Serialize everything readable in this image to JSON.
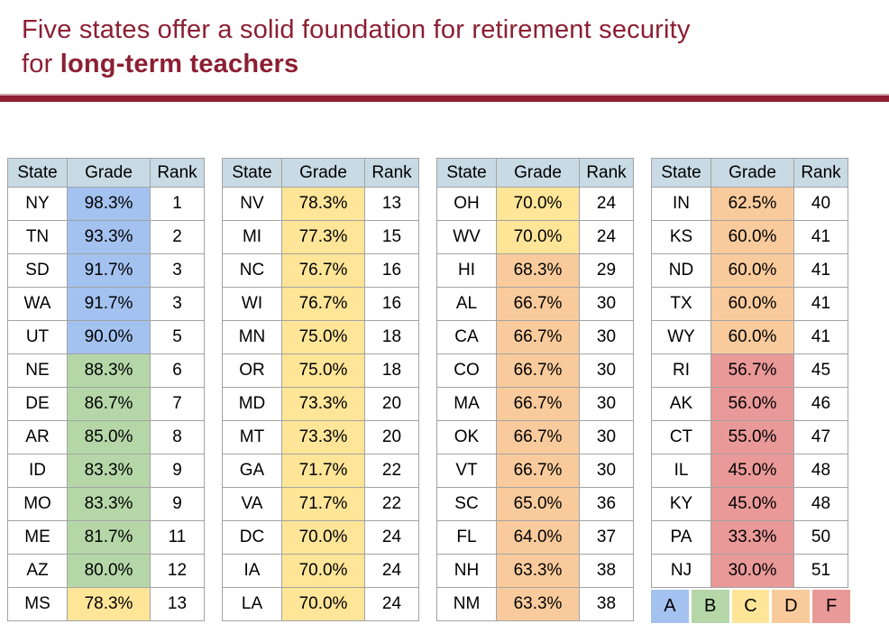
{
  "title": {
    "line1": "Five states offer a solid foundation for retirement security",
    "line2_prefix": "for ",
    "line2_bold": "long-term teachers"
  },
  "colors": {
    "accent": "#8c1f33",
    "rule_highlight": "#d2a2ab",
    "header_bg": "#c8dae4",
    "cell_border": "#a3a3a3",
    "bands": {
      "A": "#a3c2f0",
      "B": "#b5d7a8",
      "C": "#ffe598",
      "D": "#f9cb9c",
      "F": "#ea9999"
    }
  },
  "legend": [
    {
      "label": "A",
      "band": "A"
    },
    {
      "label": "B",
      "band": "B"
    },
    {
      "label": "C",
      "band": "C"
    },
    {
      "label": "D",
      "band": "D"
    },
    {
      "label": "F",
      "band": "F"
    }
  ],
  "chart_data": {
    "type": "table",
    "title": "Five states offer a solid foundation for retirement security for long-term teachers",
    "columns": [
      "State",
      "Grade",
      "Rank"
    ],
    "legend_grades": [
      "A",
      "B",
      "C",
      "D",
      "F"
    ],
    "groups": [
      {
        "rows": [
          {
            "state": "NY",
            "grade": "98.3%",
            "rank": "1",
            "band": "A"
          },
          {
            "state": "TN",
            "grade": "93.3%",
            "rank": "2",
            "band": "A"
          },
          {
            "state": "SD",
            "grade": "91.7%",
            "rank": "3",
            "band": "A"
          },
          {
            "state": "WA",
            "grade": "91.7%",
            "rank": "3",
            "band": "A"
          },
          {
            "state": "UT",
            "grade": "90.0%",
            "rank": "5",
            "band": "A"
          },
          {
            "state": "NE",
            "grade": "88.3%",
            "rank": "6",
            "band": "B"
          },
          {
            "state": "DE",
            "grade": "86.7%",
            "rank": "7",
            "band": "B"
          },
          {
            "state": "AR",
            "grade": "85.0%",
            "rank": "8",
            "band": "B"
          },
          {
            "state": "ID",
            "grade": "83.3%",
            "rank": "9",
            "band": "B"
          },
          {
            "state": "MO",
            "grade": "83.3%",
            "rank": "9",
            "band": "B"
          },
          {
            "state": "ME",
            "grade": "81.7%",
            "rank": "11",
            "band": "B"
          },
          {
            "state": "AZ",
            "grade": "80.0%",
            "rank": "12",
            "band": "B"
          },
          {
            "state": "MS",
            "grade": "78.3%",
            "rank": "13",
            "band": "C"
          }
        ]
      },
      {
        "rows": [
          {
            "state": "NV",
            "grade": "78.3%",
            "rank": "13",
            "band": "C"
          },
          {
            "state": "MI",
            "grade": "77.3%",
            "rank": "15",
            "band": "C"
          },
          {
            "state": "NC",
            "grade": "76.7%",
            "rank": "16",
            "band": "C"
          },
          {
            "state": "WI",
            "grade": "76.7%",
            "rank": "16",
            "band": "C"
          },
          {
            "state": "MN",
            "grade": "75.0%",
            "rank": "18",
            "band": "C"
          },
          {
            "state": "OR",
            "grade": "75.0%",
            "rank": "18",
            "band": "C"
          },
          {
            "state": "MD",
            "grade": "73.3%",
            "rank": "20",
            "band": "C"
          },
          {
            "state": "MT",
            "grade": "73.3%",
            "rank": "20",
            "band": "C"
          },
          {
            "state": "GA",
            "grade": "71.7%",
            "rank": "22",
            "band": "C"
          },
          {
            "state": "VA",
            "grade": "71.7%",
            "rank": "22",
            "band": "C"
          },
          {
            "state": "DC",
            "grade": "70.0%",
            "rank": "24",
            "band": "C"
          },
          {
            "state": "IA",
            "grade": "70.0%",
            "rank": "24",
            "band": "C"
          },
          {
            "state": "LA",
            "grade": "70.0%",
            "rank": "24",
            "band": "C"
          }
        ]
      },
      {
        "rows": [
          {
            "state": "OH",
            "grade": "70.0%",
            "rank": "24",
            "band": "C"
          },
          {
            "state": "WV",
            "grade": "70.0%",
            "rank": "24",
            "band": "C"
          },
          {
            "state": "HI",
            "grade": "68.3%",
            "rank": "29",
            "band": "D"
          },
          {
            "state": "AL",
            "grade": "66.7%",
            "rank": "30",
            "band": "D"
          },
          {
            "state": "CA",
            "grade": "66.7%",
            "rank": "30",
            "band": "D"
          },
          {
            "state": "CO",
            "grade": "66.7%",
            "rank": "30",
            "band": "D"
          },
          {
            "state": "MA",
            "grade": "66.7%",
            "rank": "30",
            "band": "D"
          },
          {
            "state": "OK",
            "grade": "66.7%",
            "rank": "30",
            "band": "D"
          },
          {
            "state": "VT",
            "grade": "66.7%",
            "rank": "30",
            "band": "D"
          },
          {
            "state": "SC",
            "grade": "65.0%",
            "rank": "36",
            "band": "D"
          },
          {
            "state": "FL",
            "grade": "64.0%",
            "rank": "37",
            "band": "D"
          },
          {
            "state": "NH",
            "grade": "63.3%",
            "rank": "38",
            "band": "D"
          },
          {
            "state": "NM",
            "grade": "63.3%",
            "rank": "38",
            "band": "D"
          }
        ]
      },
      {
        "rows": [
          {
            "state": "IN",
            "grade": "62.5%",
            "rank": "40",
            "band": "D"
          },
          {
            "state": "KS",
            "grade": "60.0%",
            "rank": "41",
            "band": "D"
          },
          {
            "state": "ND",
            "grade": "60.0%",
            "rank": "41",
            "band": "D"
          },
          {
            "state": "TX",
            "grade": "60.0%",
            "rank": "41",
            "band": "D"
          },
          {
            "state": "WY",
            "grade": "60.0%",
            "rank": "41",
            "band": "D"
          },
          {
            "state": "RI",
            "grade": "56.7%",
            "rank": "45",
            "band": "F"
          },
          {
            "state": "AK",
            "grade": "56.0%",
            "rank": "46",
            "band": "F"
          },
          {
            "state": "CT",
            "grade": "55.0%",
            "rank": "47",
            "band": "F"
          },
          {
            "state": "IL",
            "grade": "45.0%",
            "rank": "48",
            "band": "F"
          },
          {
            "state": "KY",
            "grade": "45.0%",
            "rank": "48",
            "band": "F"
          },
          {
            "state": "PA",
            "grade": "33.3%",
            "rank": "50",
            "band": "F"
          },
          {
            "state": "NJ",
            "grade": "30.0%",
            "rank": "51",
            "band": "F"
          }
        ]
      }
    ]
  }
}
